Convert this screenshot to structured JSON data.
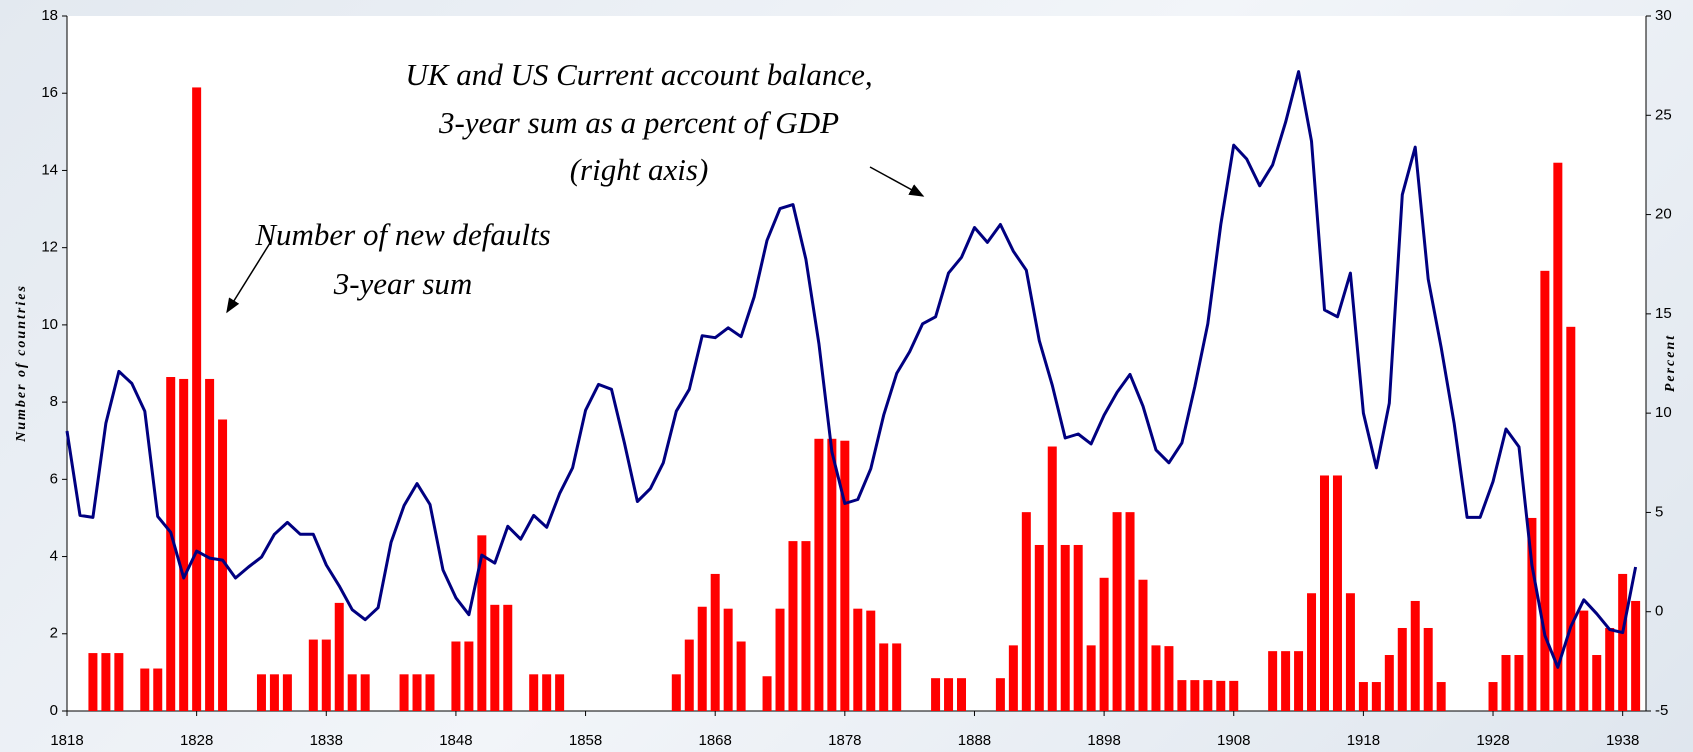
{
  "chart_data": {
    "type": "bar_line",
    "ylabel": "Number of countries",
    "y2label": "Percent",
    "annotations": [
      "UK  and US Current account  balance,",
      "3-year sum as a percent of GDP",
      "(right axis)",
      "Number of new defaults",
      "3-year sum"
    ],
    "x": [
      1818,
      1819,
      1820,
      1821,
      1822,
      1823,
      1824,
      1825,
      1826,
      1827,
      1828,
      1829,
      1830,
      1831,
      1832,
      1833,
      1834,
      1835,
      1836,
      1837,
      1838,
      1839,
      1840,
      1841,
      1842,
      1843,
      1844,
      1845,
      1846,
      1847,
      1848,
      1849,
      1850,
      1851,
      1852,
      1853,
      1854,
      1855,
      1856,
      1857,
      1858,
      1859,
      1860,
      1861,
      1862,
      1863,
      1864,
      1865,
      1866,
      1867,
      1868,
      1869,
      1870,
      1871,
      1872,
      1873,
      1874,
      1875,
      1876,
      1877,
      1878,
      1879,
      1880,
      1881,
      1882,
      1883,
      1884,
      1885,
      1886,
      1887,
      1888,
      1889,
      1890,
      1891,
      1892,
      1893,
      1894,
      1895,
      1896,
      1897,
      1898,
      1899,
      1900,
      1901,
      1902,
      1903,
      1904,
      1905,
      1906,
      1907,
      1908,
      1909,
      1910,
      1911,
      1912,
      1913,
      1914,
      1915,
      1916,
      1917,
      1918,
      1919,
      1920,
      1921,
      1922,
      1923,
      1924,
      1925,
      1926,
      1927,
      1928,
      1929,
      1930,
      1931,
      1932,
      1933,
      1934,
      1935,
      1936,
      1937,
      1938,
      1939
    ],
    "series": [
      {
        "name": "Number of new defaults",
        "type": "bar",
        "axis": "y",
        "color": "#ff0000",
        "values": [
          0,
          0,
          1.5,
          1.5,
          1.5,
          0,
          1.1,
          1.1,
          8.65,
          8.6,
          16.15,
          8.6,
          7.55,
          0,
          0,
          0.95,
          0.95,
          0.95,
          0,
          1.85,
          1.85,
          2.8,
          0.95,
          0.95,
          0,
          0,
          0.95,
          0.95,
          0.95,
          0,
          1.8,
          1.8,
          4.55,
          2.75,
          2.75,
          0,
          0.95,
          0.95,
          0.95,
          0,
          0,
          0,
          0,
          0,
          0,
          0,
          0,
          0.95,
          1.85,
          2.7,
          3.55,
          2.65,
          1.8,
          0,
          0.9,
          2.65,
          4.4,
          4.4,
          7.05,
          7.05,
          7.0,
          2.65,
          2.6,
          1.75,
          1.75,
          0,
          0,
          0.85,
          0.85,
          0.85,
          0,
          0,
          0.85,
          1.7,
          5.15,
          4.3,
          6.85,
          4.3,
          4.3,
          1.7,
          3.45,
          5.15,
          5.15,
          3.4,
          1.7,
          1.68,
          0.8,
          0.8,
          0.8,
          0.78,
          0.78,
          0,
          0,
          1.55,
          1.55,
          1.55,
          3.05,
          6.1,
          6.1,
          3.05,
          0.75,
          0.75,
          1.45,
          2.15,
          2.85,
          2.15,
          0.75,
          0,
          0,
          0,
          0.75,
          1.45,
          1.45,
          5.0,
          11.4,
          14.2,
          9.95,
          2.6,
          1.45,
          2.15,
          3.55,
          2.85
        ]
      },
      {
        "name": "UK and US Current account balance",
        "type": "line",
        "axis": "y2",
        "color": "#000080",
        "values": [
          9.1,
          4.85,
          4.75,
          9.5,
          12.1,
          11.5,
          10.1,
          4.8,
          4.0,
          1.7,
          3.05,
          2.7,
          2.6,
          1.7,
          2.25,
          2.75,
          3.9,
          4.5,
          3.9,
          3.9,
          2.35,
          1.3,
          0.1,
          -0.4,
          0.2,
          3.5,
          5.35,
          6.45,
          5.4,
          2.1,
          0.7,
          -0.15,
          2.85,
          2.45,
          4.3,
          3.65,
          4.85,
          4.25,
          5.95,
          7.25,
          10.15,
          11.45,
          11.2,
          8.5,
          5.55,
          6.2,
          7.5,
          10.1,
          11.2,
          13.9,
          13.8,
          14.3,
          13.85,
          15.85,
          18.7,
          20.3,
          20.5,
          17.75,
          13.5,
          8.05,
          5.45,
          5.65,
          7.2,
          9.9,
          12.0,
          13.1,
          14.5,
          14.85,
          17.05,
          17.85,
          19.35,
          18.6,
          19.5,
          18.15,
          17.2,
          13.65,
          11.4,
          8.75,
          8.95,
          8.45,
          9.9,
          11.05,
          11.95,
          10.35,
          8.15,
          7.5,
          8.5,
          11.35,
          14.5,
          19.5,
          23.5,
          22.8,
          21.45,
          22.5,
          24.65,
          27.2,
          23.7,
          15.2,
          14.85,
          17.05,
          10.0,
          7.25,
          10.5,
          21.0,
          23.4,
          16.75,
          13.3,
          9.5,
          4.75,
          4.75,
          6.55,
          9.2,
          8.3,
          2.35,
          -1.2,
          -2.8,
          -0.75,
          0.6,
          -0.1,
          -0.9,
          -1.05,
          2.25
        ]
      }
    ],
    "xlim": [
      1818,
      1939.8
    ],
    "xticks": [
      1818,
      1828,
      1838,
      1848,
      1858,
      1868,
      1878,
      1888,
      1898,
      1908,
      1918,
      1928,
      1938
    ],
    "ylim": [
      0,
      18
    ],
    "yticks": [
      0,
      2,
      4,
      6,
      8,
      10,
      12,
      14,
      16,
      18
    ],
    "y2lim": [
      -5,
      30
    ],
    "y2ticks": [
      -5,
      0,
      5,
      10,
      15,
      20,
      25,
      30
    ]
  }
}
